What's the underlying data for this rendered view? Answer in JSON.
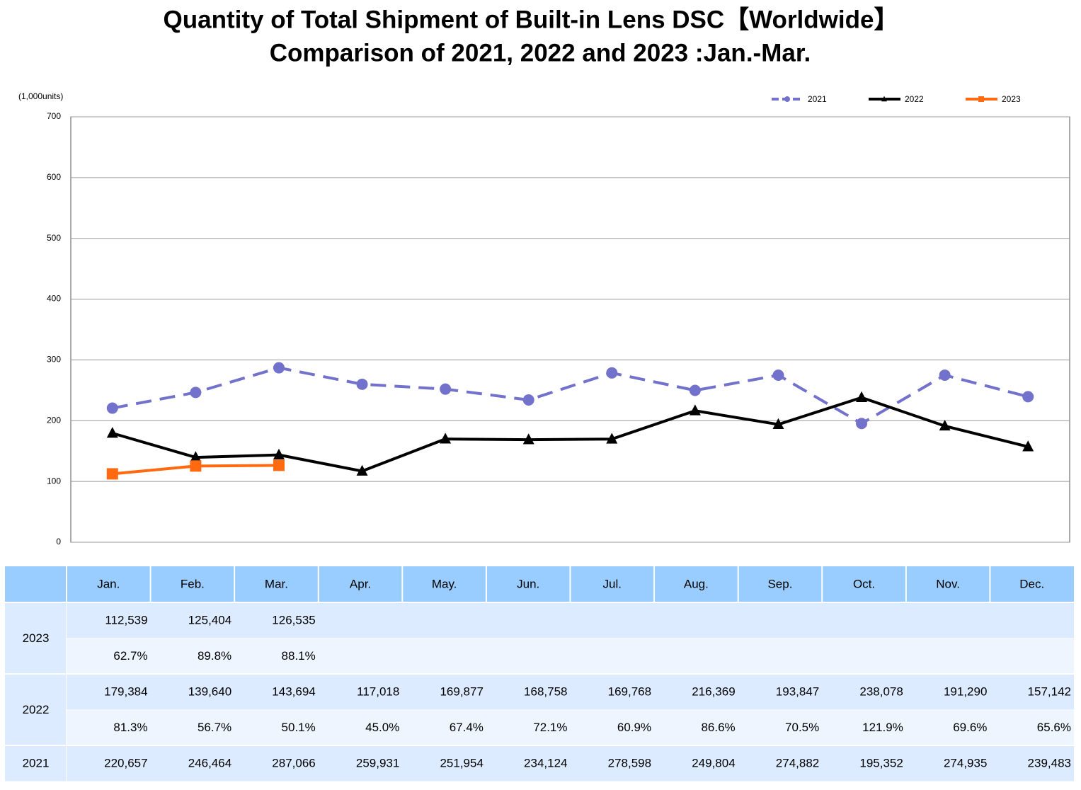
{
  "chart_data": {
    "type": "line",
    "title": "Quantity of Total Shipment of Built-in Lens DSC【Worldwide】",
    "subtitle": "Comparison of 2021, 2022 and 2023 :Jan.-Mar.",
    "y_unit": "(1,000units)",
    "categories": [
      "Jan.",
      "Feb.",
      "Mar.",
      "Apr.",
      "May.",
      "Jun.",
      "Jul.",
      "Aug.",
      "Sep.",
      "Oct.",
      "Nov.",
      "Dec."
    ],
    "ylim": [
      0,
      700
    ],
    "yticks": [
      0,
      100,
      200,
      300,
      400,
      500,
      600,
      700
    ],
    "grid": true,
    "legend": "top-right",
    "series": [
      {
        "name": "2021",
        "color": "#7272cc",
        "dash": true,
        "marker": "circle",
        "values": [
          220.657,
          246.464,
          287.066,
          259.931,
          251.954,
          234.124,
          278.598,
          249.804,
          274.882,
          195.352,
          274.935,
          239.483
        ],
        "value_labels": [
          "220,657",
          "246,464",
          "287,066",
          "259,931",
          "251,954",
          "234,124",
          "278,598",
          "249,804",
          "274,882",
          "195,352",
          "274,935",
          "239,483"
        ]
      },
      {
        "name": "2022",
        "color": "#000000",
        "dash": false,
        "marker": "triangle",
        "values": [
          179.384,
          139.64,
          143.694,
          117.018,
          169.877,
          168.758,
          169.768,
          216.369,
          193.847,
          238.078,
          191.29,
          157.142
        ],
        "value_labels": [
          "179,384",
          "139,640",
          "143,694",
          "117,018",
          "169,877",
          "168,758",
          "169,768",
          "216,369",
          "193,847",
          "238,078",
          "191,290",
          "157,142"
        ],
        "ratio_labels": [
          "81.3%",
          "56.7%",
          "50.1%",
          "45.0%",
          "67.4%",
          "72.1%",
          "60.9%",
          "86.6%",
          "70.5%",
          "121.9%",
          "69.6%",
          "65.6%"
        ]
      },
      {
        "name": "2023",
        "color": "#ff6a10",
        "dash": false,
        "marker": "square",
        "values": [
          112.539,
          125.404,
          126.535,
          null,
          null,
          null,
          null,
          null,
          null,
          null,
          null,
          null
        ],
        "value_labels": [
          "112,539",
          "125,404",
          "126,535",
          null,
          null,
          null,
          null,
          null,
          null,
          null,
          null,
          null
        ],
        "ratio_labels": [
          "62.7%",
          "89.8%",
          "88.1%",
          null,
          null,
          null,
          null,
          null,
          null,
          null,
          null,
          null
        ]
      }
    ]
  }
}
